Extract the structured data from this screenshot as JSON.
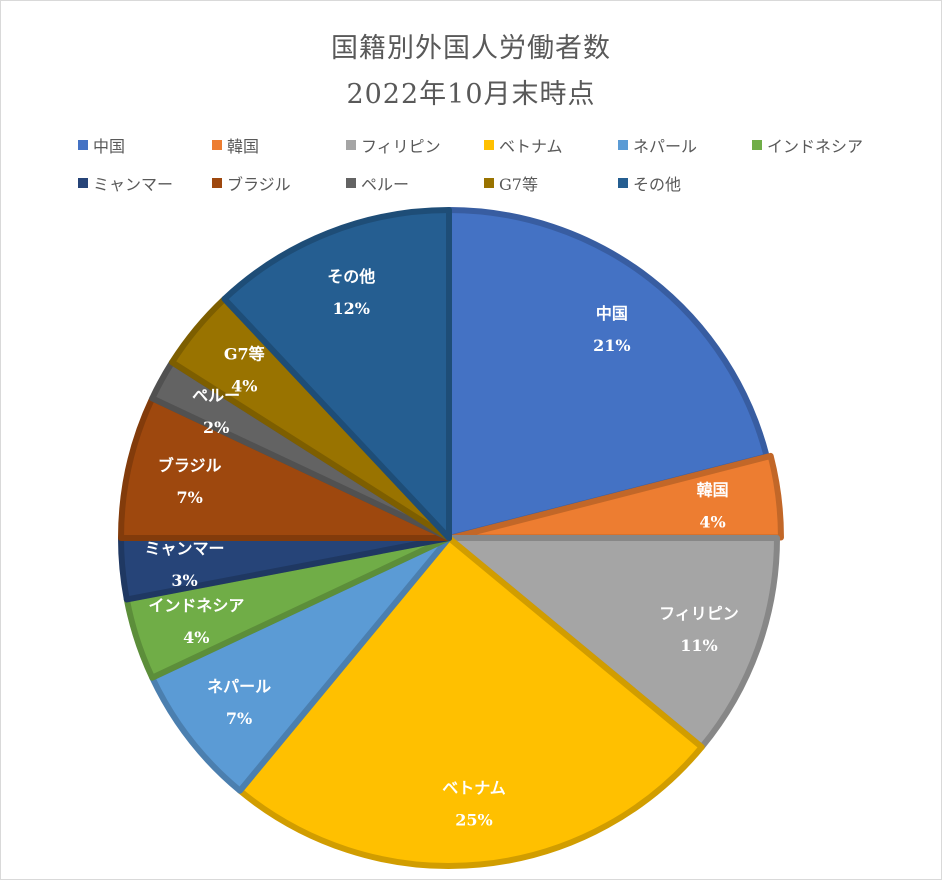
{
  "chart_data": {
    "type": "pie",
    "title": "国籍別外国人労働者数",
    "subtitle": "2022年10月末時点",
    "legend_position": "top",
    "slices": [
      {
        "label": "中国",
        "value": 21,
        "display": "21%",
        "color": "#4472C4"
      },
      {
        "label": "韓国",
        "value": 4,
        "display": "4%",
        "color": "#ED7D31"
      },
      {
        "label": "フィリピン",
        "value": 11,
        "display": "11%",
        "color": "#A5A5A5"
      },
      {
        "label": "ベトナム",
        "value": 25,
        "display": "25%",
        "color": "#FFC000"
      },
      {
        "label": "ネパール",
        "value": 7,
        "display": "7%",
        "color": "#5B9BD5"
      },
      {
        "label": "インドネシア",
        "value": 4,
        "display": "4%",
        "color": "#70AD47"
      },
      {
        "label": "ミャンマー",
        "value": 3,
        "display": "3%",
        "color": "#264478"
      },
      {
        "label": "ブラジル",
        "value": 7,
        "display": "7%",
        "color": "#9E480E"
      },
      {
        "label": "ペルー",
        "value": 2,
        "display": "2%",
        "color": "#636363"
      },
      {
        "label": "G7等",
        "value": 4,
        "display": "4%",
        "color": "#997300"
      },
      {
        "label": "その他",
        "value": 12,
        "display": "12%",
        "color": "#255E91"
      }
    ]
  }
}
